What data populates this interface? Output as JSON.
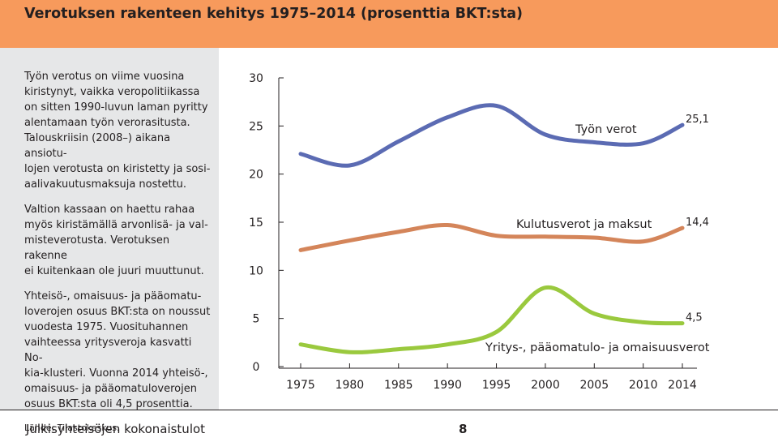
{
  "header": {
    "title": "Verotuksen rakenteen kehitys 1975–2014 (prosenttia BKT:sta)"
  },
  "sidebar": {
    "paragraphs": [
      "Työn verotus on viime vuosina\nkiristynyt, vaikka veropolitiikassa\non sitten 1990-luvun laman pyritty\nalentamaan työn verorasitusta.\nTalouskriisin (2008–) aikana ansiotu-\nlojen verotusta on kiristetty ja sosi-\naalivakuutusmaksuja nostettu.",
      "Valtion kassaan on haettu rahaa\nmyös kiristämällä arvonlisä- ja val-\nmisteverotusta. Verotuksen rakenne\nei kuitenkaan ole juuri muuttunut.",
      "Yhteisö-, omaisuus- ja pääomatu-\nloverojen osuus BKT:sta on noussut\nvuodesta 1975. Vuosituhannen\nvaihteessa yritysveroja kasvatti No-\nkia-klusteri. Vuonna 2014 yhteisö-,\nomaisuus- ja pääomatuloverojen\nosuus BKT:sta oli 4,5 prosenttia."
    ],
    "source": "Lähde: Tilastokeskus."
  },
  "footer": {
    "title": "Julkisyhteisöjen kokonaistulot",
    "page": "8"
  },
  "chart_data": {
    "type": "line",
    "x": [
      1975,
      1980,
      1985,
      1990,
      1995,
      2000,
      2005,
      2010,
      2014
    ],
    "x_tick_labels": [
      "1975",
      "1980",
      "1985",
      "1990",
      "1995",
      "2000",
      "2005",
      "2010",
      "2014"
    ],
    "y_tick_labels": [
      "0",
      "5",
      "10",
      "15",
      "20",
      "25",
      "30"
    ],
    "ylim": [
      0,
      30
    ],
    "grid": false,
    "series": [
      {
        "name": "Työn verot",
        "color": "#5b6bb3",
        "values": [
          22.1,
          20.9,
          23.4,
          25.9,
          27.1,
          24.1,
          23.3,
          23.2,
          25.1
        ],
        "end_label": "25,1"
      },
      {
        "name": "Kulutusverot ja maksut",
        "color": "#d4855a",
        "values": [
          12.1,
          13.1,
          14.0,
          14.7,
          13.6,
          13.5,
          13.4,
          13.0,
          14.4
        ],
        "end_label": "14,4"
      },
      {
        "name": "Yritys-, pääomatulo- ja omaisuusverot",
        "color": "#9ac93e",
        "values": [
          2.3,
          1.5,
          1.8,
          2.3,
          3.6,
          8.2,
          5.5,
          4.6,
          4.5
        ],
        "end_label": "4,5"
      }
    ]
  }
}
